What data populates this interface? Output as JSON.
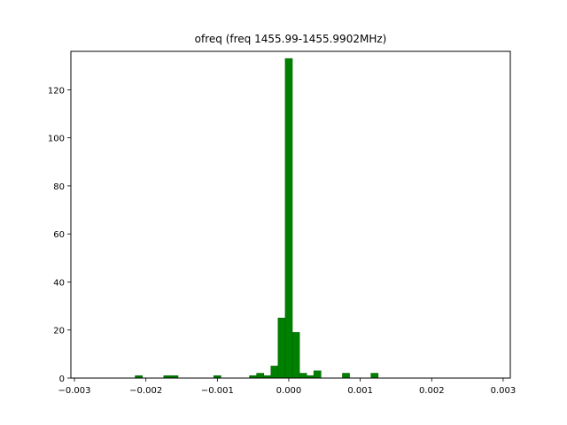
{
  "chart_data": {
    "type": "bar",
    "title": "ofreq (freq 1455.99-1455.9902MHz)",
    "xlabel": "",
    "ylabel": "",
    "xlim": [
      -0.00305,
      0.0031
    ],
    "ylim": [
      0,
      136
    ],
    "x_ticks": [
      -0.003,
      -0.002,
      -0.001,
      0.0,
      0.001,
      0.002,
      0.003
    ],
    "x_tick_labels": [
      "−0.003",
      "−0.002",
      "−0.001",
      "0.000",
      "0.001",
      "0.002",
      "0.003"
    ],
    "y_ticks": [
      0,
      20,
      40,
      60,
      80,
      100,
      120
    ],
    "y_tick_labels": [
      "0",
      "20",
      "40",
      "60",
      "80",
      "100",
      "120"
    ],
    "bin_width": 0.0001,
    "bins": [
      {
        "x": -0.0021,
        "count": 1
      },
      {
        "x": -0.0017,
        "count": 1
      },
      {
        "x": -0.0016,
        "count": 1
      },
      {
        "x": -0.001,
        "count": 1
      },
      {
        "x": -0.0005,
        "count": 1
      },
      {
        "x": -0.0004,
        "count": 2
      },
      {
        "x": -0.0003,
        "count": 1
      },
      {
        "x": -0.0002,
        "count": 5
      },
      {
        "x": -0.0001,
        "count": 25
      },
      {
        "x": 0.0,
        "count": 133
      },
      {
        "x": 0.0001,
        "count": 19
      },
      {
        "x": 0.0002,
        "count": 2
      },
      {
        "x": 0.0003,
        "count": 1
      },
      {
        "x": 0.0004,
        "count": 3
      },
      {
        "x": 0.0008,
        "count": 2
      },
      {
        "x": 0.0012,
        "count": 2
      }
    ],
    "bar_color": "#008000",
    "bar_edge_color": "#006400",
    "grid": false,
    "legend": "none"
  }
}
